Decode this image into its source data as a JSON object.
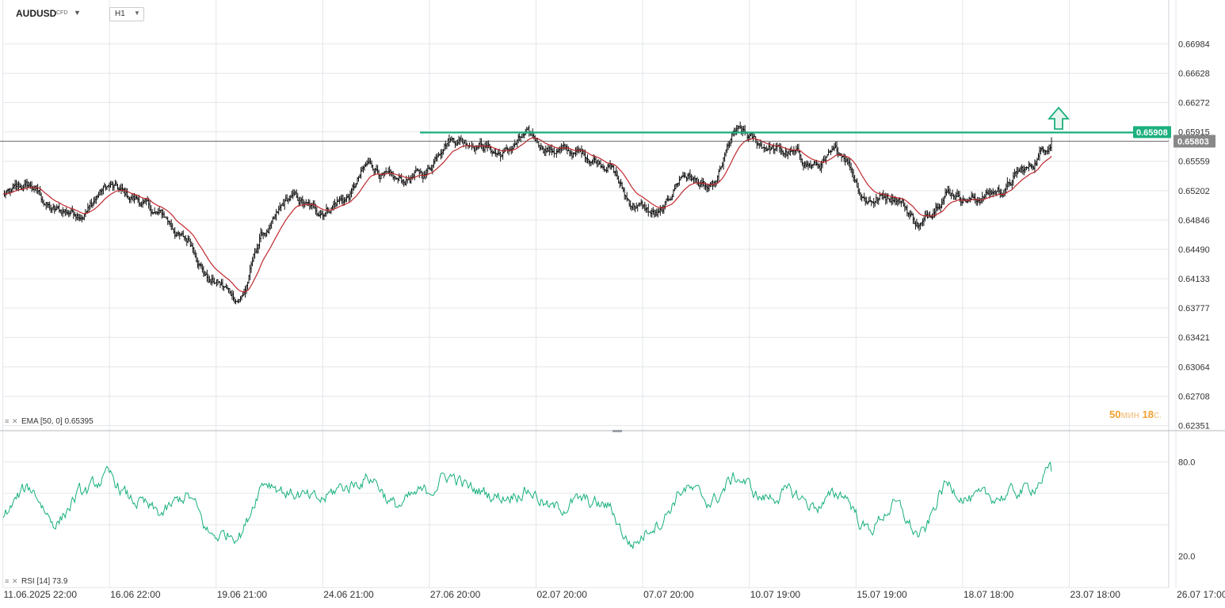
{
  "header": {
    "symbol": "AUDUSD",
    "instrument_type": "CFD",
    "timeframe": "H1"
  },
  "indicators": {
    "ema_label": "EMA",
    "ema_params": "[50, 0]",
    "ema_value": "0.65395",
    "rsi_label": "RSI",
    "rsi_params": "[14]",
    "rsi_value": "73.9"
  },
  "candle_timer": {
    "minutes": "50",
    "minutes_unit": "мин",
    "seconds": "18",
    "seconds_unit": "с."
  },
  "colors": {
    "resistance_line": "#1cb07e",
    "ema": "#c0282d",
    "rsi": "#17b07a",
    "price_tag": "#888888",
    "candles": "#111111",
    "grid": "#e3e6ea"
  },
  "chart_data": [
    {
      "type": "ohlc",
      "symbol": "AUDUSD",
      "timeframe": "H1",
      "x_tick_labels": [
        "11.06.2025 22:00",
        "16.06 22:00",
        "19.06 21:00",
        "24.06 21:00",
        "27.06 20:00",
        "02.07 20:00",
        "07.07 20:00",
        "10.07 19:00",
        "15.07 19:00",
        "18.07 18:00",
        "23.07 18:00",
        "26.07 17:00"
      ],
      "y_tick_labels": [
        "0.66984",
        "0.66628",
        "0.66272",
        "0.65915",
        "0.65559",
        "0.65202",
        "0.64846",
        "0.64490",
        "0.64133",
        "0.63777",
        "0.63421",
        "0.63064",
        "0.62708",
        "0.62351"
      ],
      "ylim": [
        0.62351,
        0.6734
      ],
      "price_path": {
        "x": [
          "11.06.2025 22:00",
          "12.06",
          "13.06",
          "14.06",
          "16.06 22:00",
          "17.06",
          "18.06",
          "19.06 21:00",
          "20.06",
          "21.06",
          "22.06",
          "23.06",
          "24.06 21:00",
          "25.06",
          "26.06",
          "27.06 20:00",
          "28.06",
          "29.06",
          "30.06",
          "01.07",
          "02.07 20:00",
          "03.07",
          "04.07",
          "05.07",
          "06.07",
          "07.07 20:00",
          "08.07",
          "09.07",
          "10.07 19:00",
          "11.07",
          "12.07",
          "13.07",
          "14.07",
          "15.07 19:00",
          "16.07",
          "17.07",
          "18.07 18:00",
          "19.07",
          "20.07",
          "21.07",
          "22.07"
        ],
        "close": [
          0.6515,
          0.6525,
          0.6495,
          0.6495,
          0.6525,
          0.651,
          0.649,
          0.646,
          0.641,
          0.639,
          0.647,
          0.651,
          0.6495,
          0.651,
          0.655,
          0.653,
          0.654,
          0.6585,
          0.658,
          0.6565,
          0.6585,
          0.657,
          0.6565,
          0.6555,
          0.6505,
          0.649,
          0.654,
          0.652,
          0.659,
          0.6575,
          0.6565,
          0.655,
          0.6565,
          0.651,
          0.6515,
          0.648,
          0.652,
          0.651,
          0.652,
          0.6545,
          0.658
        ]
      },
      "ema": {
        "name": "EMA",
        "period": 50,
        "offset": 0,
        "last_value": 0.65395
      },
      "resistance_level": 0.65908,
      "last_price": 0.65803,
      "annotation": "up arrow above resistance line"
    },
    {
      "type": "line",
      "name": "RSI",
      "period": 14,
      "last_value": 73.9,
      "y_tick_labels": [
        "80.0",
        "20.0"
      ],
      "ylim": [
        15,
        92
      ],
      "x": [
        "11.06.2025 22:00",
        "12.06",
        "13.06",
        "14.06",
        "16.06 22:00",
        "17.06",
        "18.06",
        "19.06 21:00",
        "20.06",
        "21.06",
        "22.06",
        "23.06",
        "24.06 21:00",
        "25.06",
        "26.06",
        "27.06 20:00",
        "28.06",
        "29.06",
        "30.06",
        "01.07",
        "02.07 20:00",
        "03.07",
        "04.07",
        "05.07",
        "06.07",
        "07.07 20:00",
        "08.07",
        "09.07",
        "10.07 19:00",
        "11.07",
        "12.07",
        "13.07",
        "14.07",
        "15.07 19:00",
        "16.07",
        "17.07",
        "18.07 18:00",
        "19.07",
        "20.07",
        "21.07",
        "22.07"
      ],
      "values": [
        48,
        63,
        42,
        60,
        70,
        55,
        47,
        58,
        33,
        35,
        68,
        60,
        55,
        64,
        70,
        52,
        60,
        71,
        62,
        58,
        62,
        50,
        55,
        52,
        28,
        42,
        63,
        55,
        70,
        57,
        60,
        52,
        60,
        37,
        52,
        33,
        65,
        56,
        58,
        62,
        73.9
      ]
    }
  ]
}
